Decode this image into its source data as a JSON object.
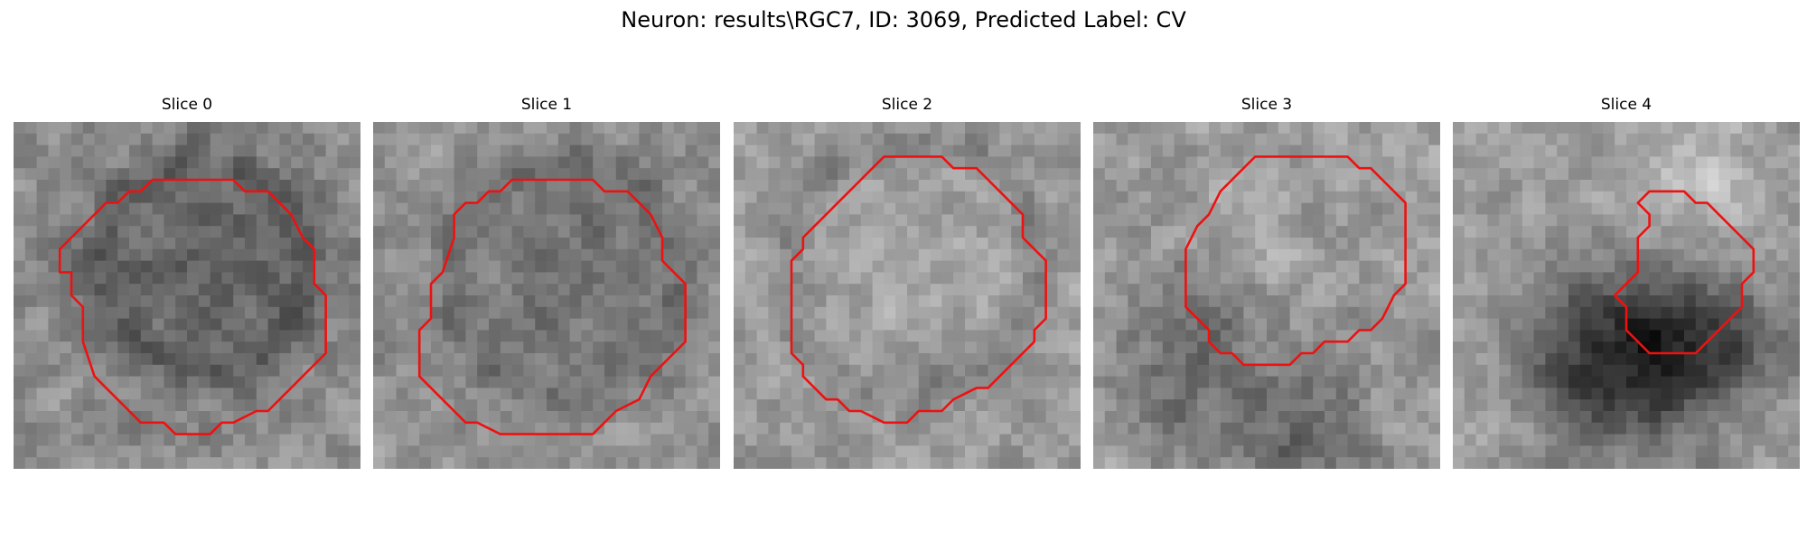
{
  "figure": {
    "title": "Neuron: results\\RGC7, ID: 3069, Predicted Label: CV"
  },
  "panels": [
    {
      "title": "Slice 0"
    },
    {
      "title": "Slice 1"
    },
    {
      "title": "Slice 2"
    },
    {
      "title": "Slice 3"
    },
    {
      "title": "Slice 4"
    }
  ],
  "colors": {
    "contour": "#ee1111",
    "background": "#ffffff"
  }
}
